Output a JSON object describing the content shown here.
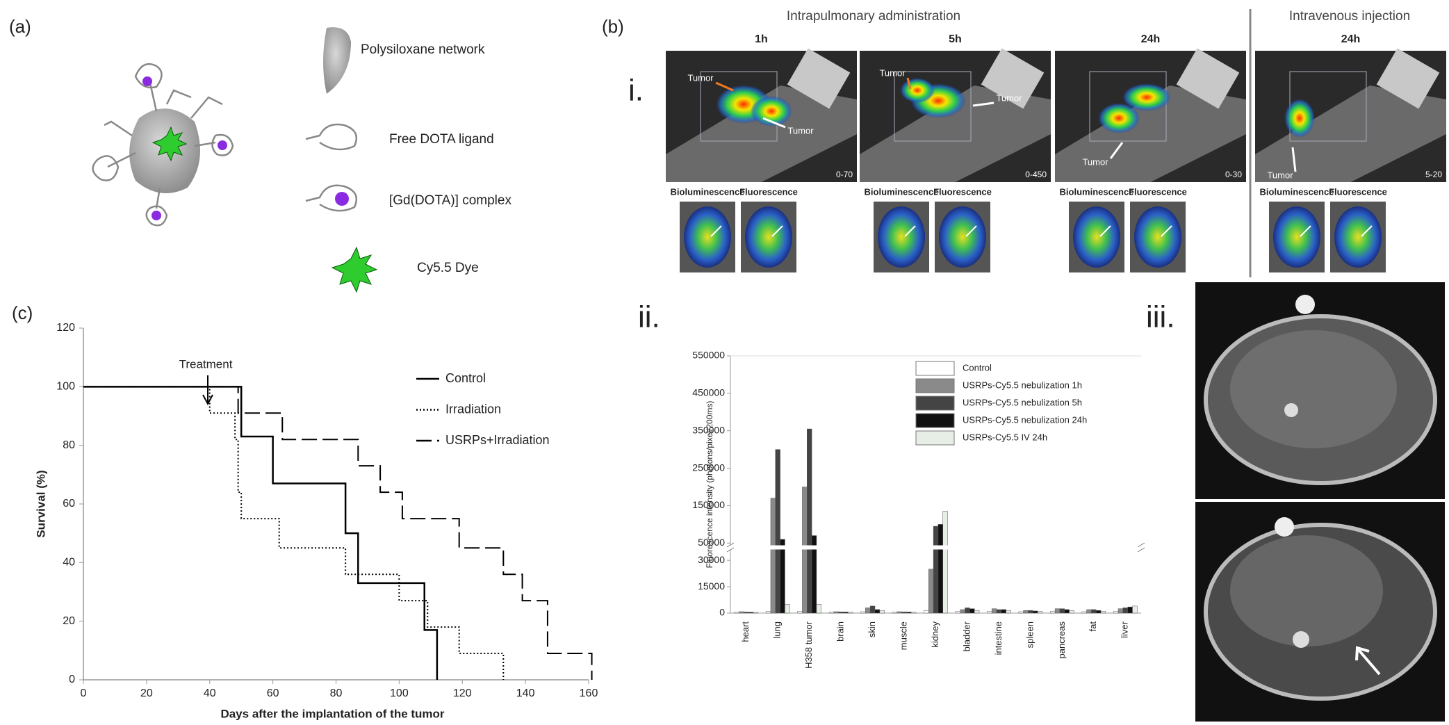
{
  "panel_a": {
    "label": "(a)",
    "legend": [
      "Polysiloxane network",
      "Free DOTA ligand",
      "[Gd(DOTA)] complex",
      "Cy5.5 Dye"
    ]
  },
  "panel_b": {
    "label": "(b)",
    "row_label": "i.",
    "groups": [
      {
        "title": "Intrapulmonary administration",
        "images": [
          {
            "time": "1h",
            "range": "0-70",
            "tumor_labels": [
              "Tumor",
              "Tumor"
            ],
            "subimages": [
              "Bioluminescence",
              "Fluorescence"
            ]
          },
          {
            "time": "5h",
            "range": "0-450",
            "tumor_labels": [
              "Tumor",
              "Tumor"
            ],
            "subimages": [
              "Bioluminescence",
              "Fluorescence"
            ]
          },
          {
            "time": "24h",
            "range": "0-30",
            "tumor_labels": [
              "Tumor"
            ],
            "subimages": [
              "Bioluminescence",
              "Fluorescence"
            ]
          }
        ]
      },
      {
        "title": "Intravenous injection",
        "images": [
          {
            "time": "24h",
            "range": "5-20",
            "tumor_labels": [
              "Tumor"
            ],
            "subimages": [
              "Bioluminescence",
              "Fluorescence"
            ]
          }
        ]
      }
    ]
  },
  "panel_iii": {
    "label": "iii."
  },
  "chart_data": [
    {
      "type": "line",
      "panel_label": "(c)",
      "step": true,
      "xlabel": "Days after the implantation of the tumor",
      "ylabel": "Survival  (%)",
      "annotations": [
        "Treatment"
      ],
      "xlim": [
        0,
        160
      ],
      "xticks": [
        0,
        20,
        40,
        60,
        80,
        100,
        120,
        140,
        160
      ],
      "ylim": [
        0,
        120
      ],
      "yticks": [
        0,
        20,
        40,
        60,
        80,
        100,
        120
      ],
      "series": [
        {
          "name": "Control",
          "color": "#000000",
          "dash": "solid",
          "x": [
            0,
            50,
            60,
            83,
            87,
            108,
            112
          ],
          "values": [
            100,
            83,
            67,
            50,
            33,
            17,
            0
          ]
        },
        {
          "name": "Irradiation",
          "color": "#000000",
          "dash": "dotted",
          "x": [
            0,
            40,
            48,
            49,
            50,
            62,
            83,
            100,
            109,
            119,
            133
          ],
          "values": [
            100,
            91,
            82,
            64,
            55,
            45,
            36,
            27,
            18,
            9,
            0
          ]
        },
        {
          "name": "USRPs+Irradiation",
          "color": "#000000",
          "dash": "dashed",
          "x": [
            0,
            49,
            63,
            87,
            94,
            101,
            119,
            133,
            139,
            147,
            161
          ],
          "values": [
            100,
            91,
            82,
            73,
            64,
            55,
            45,
            36,
            27,
            9,
            0
          ]
        }
      ]
    },
    {
      "type": "bar",
      "panel_label": "ii.",
      "ylabel": "Fluorescence intensity (photons/pixel/200ms)",
      "categories": [
        "heart",
        "lung",
        "H358 tumor",
        "brain",
        "skin",
        "muscle",
        "kidney",
        "bladder",
        "intestine",
        "spleen",
        "pancreas",
        "fat",
        "liver"
      ],
      "ylim": [
        0,
        550000
      ],
      "ybreak": [
        36000,
        45000
      ],
      "yticks": [
        0,
        15000,
        30000,
        50000,
        150000,
        250000,
        350000,
        450000,
        550000
      ],
      "legend": "upper right",
      "series": [
        {
          "name": "Control",
          "color": "#ffffff",
          "values": [
            500,
            1000,
            1000,
            500,
            800,
            500,
            1500,
            1000,
            1000,
            800,
            1000,
            800,
            1000
          ]
        },
        {
          "name": "USRPs-Cy5.5  nebulization  1h",
          "color": "#8a8a8a",
          "values": [
            800,
            170000,
            200000,
            800,
            3000,
            800,
            25000,
            2000,
            2500,
            1500,
            2500,
            2000,
            2500
          ]
        },
        {
          "name": "USRPs-Cy5.5  nebulization  5h",
          "color": "#444444",
          "values": [
            600,
            300000,
            355000,
            700,
            4000,
            700,
            95000,
            3000,
            2000,
            1500,
            2500,
            2000,
            3000
          ]
        },
        {
          "name": "USRPs-Cy5.5  nebulization  24h",
          "color": "#111111",
          "values": [
            500,
            60000,
            70000,
            600,
            2000,
            600,
            100000,
            2500,
            2000,
            1200,
            2000,
            1500,
            3500
          ]
        },
        {
          "name": "USRPs-Cy5.5  IV 24h",
          "color": "#e6eee6",
          "values": [
            400,
            5000,
            5000,
            500,
            1500,
            500,
            135000,
            1500,
            1500,
            1000,
            1500,
            1000,
            4000
          ]
        }
      ]
    }
  ]
}
